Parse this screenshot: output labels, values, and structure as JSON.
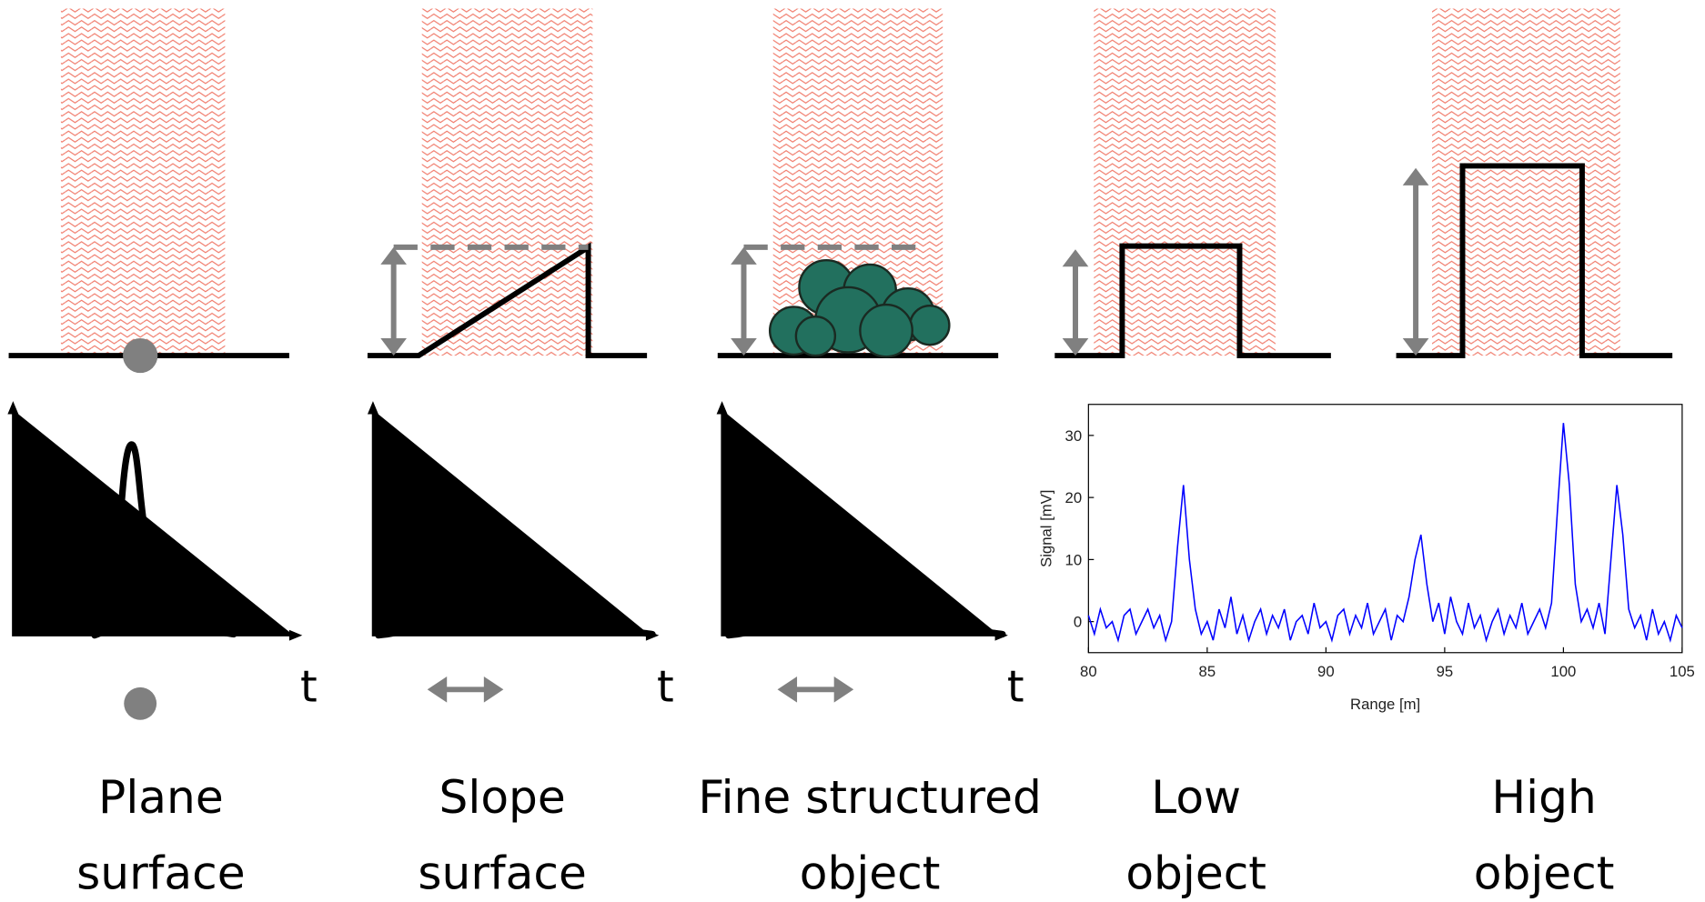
{
  "panels": [
    {
      "label": [
        "Plane",
        "surface"
      ]
    },
    {
      "label": [
        "Slope",
        "surface"
      ]
    },
    {
      "label": [
        "Fine structured",
        "object"
      ]
    },
    {
      "label": [
        "Low",
        "object"
      ]
    },
    {
      "label": [
        "High",
        "object"
      ]
    }
  ],
  "time_labels": [
    "t",
    "t",
    "t"
  ],
  "chart_data": {
    "type": "line",
    "xlabel": "Range [m]",
    "ylabel": "Signal [mV]",
    "xlim": [
      80,
      105
    ],
    "ylim": [
      -5,
      35
    ],
    "xticks": [
      80,
      85,
      90,
      95,
      100,
      105
    ],
    "yticks": [
      0,
      10,
      20,
      30
    ],
    "x": [
      80,
      80.25,
      80.5,
      80.75,
      81,
      81.25,
      81.5,
      81.75,
      82,
      82.25,
      82.5,
      82.75,
      83,
      83.25,
      83.5,
      83.75,
      84,
      84.25,
      84.5,
      84.75,
      85,
      85.25,
      85.5,
      85.75,
      86,
      86.25,
      86.5,
      86.75,
      87,
      87.25,
      87.5,
      87.75,
      88,
      88.25,
      88.5,
      88.75,
      89,
      89.25,
      89.5,
      89.75,
      90,
      90.25,
      90.5,
      90.75,
      91,
      91.25,
      91.5,
      91.75,
      92,
      92.25,
      92.5,
      92.75,
      93,
      93.25,
      93.5,
      93.75,
      94,
      94.25,
      94.5,
      94.75,
      95,
      95.25,
      95.5,
      95.75,
      96,
      96.25,
      96.5,
      96.75,
      97,
      97.25,
      97.5,
      97.75,
      98,
      98.25,
      98.5,
      98.75,
      99,
      99.25,
      99.5,
      99.75,
      100,
      100.25,
      100.5,
      100.75,
      101,
      101.25,
      101.5,
      101.75,
      102,
      102.25,
      102.5,
      102.75,
      103,
      103.25,
      103.5,
      103.75,
      104,
      104.25,
      104.5,
      104.75,
      105
    ],
    "series": [
      {
        "color": "#0000ff",
        "values": [
          1,
          -2,
          2,
          -1,
          0,
          -3,
          1,
          2,
          -2,
          0,
          2,
          -1,
          1,
          -3,
          0,
          12,
          22,
          10,
          2,
          -2,
          0,
          -3,
          2,
          -1,
          4,
          -2,
          1,
          -3,
          0,
          2,
          -2,
          1,
          -1,
          2,
          -3,
          0,
          1,
          -2,
          3,
          -1,
          0,
          -3,
          1,
          2,
          -2,
          1,
          -1,
          3,
          -2,
          0,
          2,
          -3,
          1,
          0,
          4,
          10,
          14,
          6,
          0,
          3,
          -2,
          4,
          0,
          -2,
          3,
          -1,
          1,
          -3,
          0,
          2,
          -2,
          1,
          -1,
          3,
          -2,
          0,
          2,
          -1,
          3,
          18,
          32,
          22,
          6,
          0,
          2,
          -1,
          3,
          -2,
          10,
          22,
          14,
          2,
          -1,
          1,
          -3,
          2,
          -2,
          0,
          -3,
          1,
          -1
        ]
      }
    ]
  }
}
